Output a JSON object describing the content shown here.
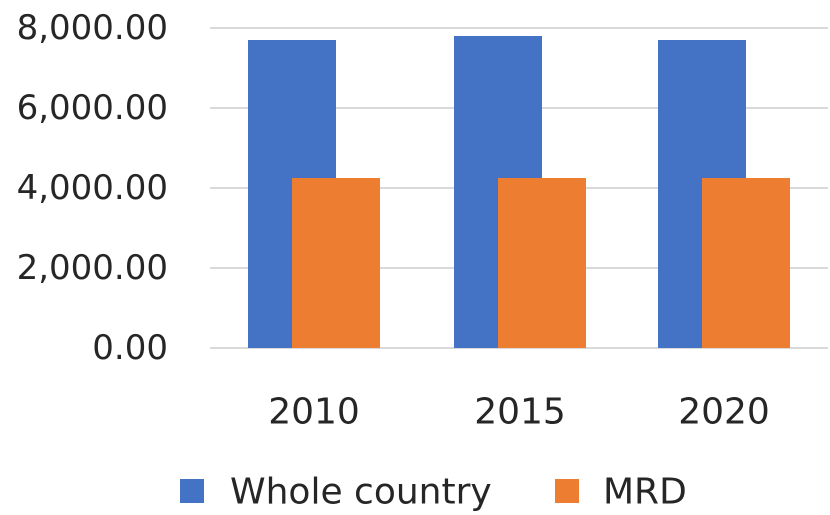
{
  "chart_data": {
    "type": "bar",
    "title": "",
    "xlabel": "",
    "ylabel": "",
    "categories": [
      "2010",
      "2015",
      "2020"
    ],
    "series": [
      {
        "name": "Whole country",
        "values": [
          7700,
          7800,
          7700
        ],
        "color": "#4472C4"
      },
      {
        "name": "MRD",
        "values": [
          4250,
          4250,
          4250
        ],
        "color": "#ED7D31"
      }
    ],
    "ylim": [
      0,
      8000
    ],
    "yticks": [
      0,
      2000,
      4000,
      6000,
      8000
    ],
    "ytick_labels": [
      "0.00",
      "2,000.00",
      "4,000.00",
      "6,000.00",
      "8,000.00"
    ],
    "grid": true,
    "legend_position": "bottom"
  }
}
